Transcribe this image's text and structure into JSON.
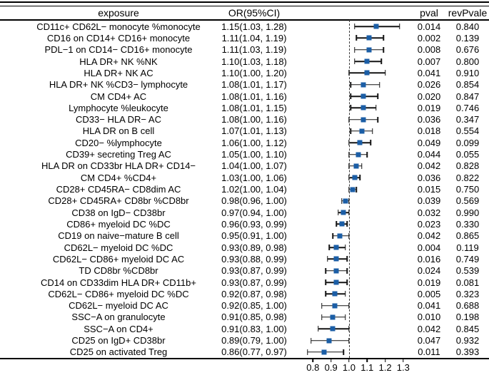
{
  "header": {
    "exposure": "exposure",
    "or_ci": "OR(95%CI)",
    "pval": "pval",
    "rev_pval": "revPvale"
  },
  "colors": {
    "marker_blue": "#1b5ea6",
    "line_black": "#141414"
  },
  "chart_data": {
    "type": "forest",
    "title": "",
    "reference_line": 1.0,
    "axis": {
      "tick_labels": [
        "0.8",
        "0.9",
        "1.0",
        "1.1",
        "1.2",
        "1.3"
      ],
      "tick_values": [
        0.8,
        0.9,
        1.0,
        1.1,
        1.2,
        1.3
      ],
      "range": [
        0.688,
        1.348
      ]
    },
    "rows": [
      {
        "exposure": "CD11c+ CD62L− monocyte %monocyte",
        "or_ci": "1.15(1.03, 1.28)",
        "or": 1.15,
        "lo": 1.03,
        "hi": 1.28,
        "pval": "0.014",
        "rev_pval": "0.840"
      },
      {
        "exposure": "CD16 on CD14+ CD16+ monocyte",
        "or_ci": "1.11(1.04, 1.19)",
        "or": 1.11,
        "lo": 1.04,
        "hi": 1.19,
        "pval": "0.002",
        "rev_pval": "0.139"
      },
      {
        "exposure": "PDL−1 on CD14− CD16+ monocyte",
        "or_ci": "1.11(1.03, 1.19)",
        "or": 1.11,
        "lo": 1.03,
        "hi": 1.19,
        "pval": "0.008",
        "rev_pval": "0.676"
      },
      {
        "exposure": "HLA DR+ NK %NK",
        "or_ci": "1.10(1.03, 1.18)",
        "or": 1.1,
        "lo": 1.03,
        "hi": 1.18,
        "pval": "0.007",
        "rev_pval": "0.800"
      },
      {
        "exposure": "HLA DR+ NK AC",
        "or_ci": "1.10(1.00, 1.20)",
        "or": 1.1,
        "lo": 1.0,
        "hi": 1.2,
        "pval": "0.041",
        "rev_pval": "0.910"
      },
      {
        "exposure": "HLA DR+ NK  %CD3− lymphocyte",
        "or_ci": "1.08(1.01, 1.17)",
        "or": 1.08,
        "lo": 1.01,
        "hi": 1.17,
        "pval": "0.026",
        "rev_pval": "0.854"
      },
      {
        "exposure": "CM CD4+ AC",
        "or_ci": "1.08(1.01, 1.16)",
        "or": 1.08,
        "lo": 1.01,
        "hi": 1.16,
        "pval": "0.020",
        "rev_pval": "0.847"
      },
      {
        "exposure": "Lymphocyte %leukocyte",
        "or_ci": "1.08(1.01, 1.15)",
        "or": 1.08,
        "lo": 1.01,
        "hi": 1.15,
        "pval": "0.019",
        "rev_pval": "0.746"
      },
      {
        "exposure": "CD33− HLA DR− AC",
        "or_ci": "1.08(1.00, 1.16)",
        "or": 1.08,
        "lo": 1.0,
        "hi": 1.16,
        "pval": "0.036",
        "rev_pval": "0.347"
      },
      {
        "exposure": "HLA DR on B cell",
        "or_ci": "1.07(1.01, 1.13)",
        "or": 1.07,
        "lo": 1.01,
        "hi": 1.13,
        "pval": "0.018",
        "rev_pval": "0.554"
      },
      {
        "exposure": "CD20− %lymphocyte",
        "or_ci": "1.06(1.00, 1.12)",
        "or": 1.06,
        "lo": 1.0,
        "hi": 1.12,
        "pval": "0.049",
        "rev_pval": "0.099"
      },
      {
        "exposure": "CD39+ secreting Treg  AC",
        "or_ci": "1.05(1.00, 1.10)",
        "or": 1.05,
        "lo": 1.0,
        "hi": 1.1,
        "pval": "0.044",
        "rev_pval": "0.055"
      },
      {
        "exposure": "HLA DR on CD33br HLA DR+ CD14−",
        "or_ci": "1.04(1.00, 1.07)",
        "or": 1.04,
        "lo": 1.0,
        "hi": 1.07,
        "pval": "0.042",
        "rev_pval": "0.828"
      },
      {
        "exposure": "CM CD4+ %CD4+",
        "or_ci": "1.03(1.00, 1.06)",
        "or": 1.03,
        "lo": 1.0,
        "hi": 1.06,
        "pval": "0.036",
        "rev_pval": "0.822"
      },
      {
        "exposure": "CD28+ CD45RA− CD8dim AC",
        "or_ci": "1.02(1.00, 1.04)",
        "or": 1.02,
        "lo": 1.0,
        "hi": 1.04,
        "pval": "0.015",
        "rev_pval": "0.750"
      },
      {
        "exposure": "CD28+ CD45RA+ CD8br %CD8br",
        "or_ci": "0.98(0.96, 1.00)",
        "or": 0.98,
        "lo": 0.96,
        "hi": 1.0,
        "pval": "0.039",
        "rev_pval": "0.569"
      },
      {
        "exposure": "CD38 on IgD− CD38br",
        "or_ci": "0.97(0.94, 1.00)",
        "or": 0.97,
        "lo": 0.94,
        "hi": 1.0,
        "pval": "0.032",
        "rev_pval": "0.990"
      },
      {
        "exposure": "CD86+ myeloid DC %DC",
        "or_ci": "0.96(0.93, 0.99)",
        "or": 0.96,
        "lo": 0.93,
        "hi": 0.99,
        "pval": "0.023",
        "rev_pval": "0.330"
      },
      {
        "exposure": "CD19 on naive−mature B cell",
        "or_ci": "0.95(0.91, 1.00)",
        "or": 0.95,
        "lo": 0.91,
        "hi": 1.0,
        "pval": "0.042",
        "rev_pval": "0.865"
      },
      {
        "exposure": "CD62L− myeloid DC %DC",
        "or_ci": "0.93(0.89, 0.98)",
        "or": 0.93,
        "lo": 0.89,
        "hi": 0.98,
        "pval": "0.004",
        "rev_pval": "0.119"
      },
      {
        "exposure": "CD62L− CD86+ myeloid DC AC",
        "or_ci": "0.93(0.88, 0.99)",
        "or": 0.93,
        "lo": 0.88,
        "hi": 0.99,
        "pval": "0.016",
        "rev_pval": "0.749"
      },
      {
        "exposure": "TD  CD8br %CD8br",
        "or_ci": "0.93(0.87, 0.99)",
        "or": 0.93,
        "lo": 0.87,
        "hi": 0.99,
        "pval": "0.024",
        "rev_pval": "0.539"
      },
      {
        "exposure": "CD14  on CD33dim HLA DR+ CD11b+",
        "or_ci": "0.93(0.87, 0.99)",
        "or": 0.93,
        "lo": 0.87,
        "hi": 0.99,
        "pval": "0.019",
        "rev_pval": "0.081"
      },
      {
        "exposure": "CD62L− CD86+ myeloid DC %DC",
        "or_ci": "0.92(0.87, 0.98)",
        "or": 0.92,
        "lo": 0.87,
        "hi": 0.98,
        "pval": "0.005",
        "rev_pval": "0.323"
      },
      {
        "exposure": "CD62L− myeloid DC AC",
        "or_ci": "0.92(0.85, 1.00)",
        "or": 0.92,
        "lo": 0.85,
        "hi": 1.0,
        "pval": "0.041",
        "rev_pval": "0.688"
      },
      {
        "exposure": "SSC−A on granulocyte",
        "or_ci": "0.91(0.85, 0.98)",
        "or": 0.91,
        "lo": 0.85,
        "hi": 0.98,
        "pval": "0.010",
        "rev_pval": "0.198"
      },
      {
        "exposure": "SSC−A on CD4+",
        "or_ci": "0.91(0.83, 1.00)",
        "or": 0.91,
        "lo": 0.83,
        "hi": 1.0,
        "pval": "0.042",
        "rev_pval": "0.845"
      },
      {
        "exposure": "CD25 on IgD+ CD38br",
        "or_ci": "0.89(0.79, 1.00)",
        "or": 0.89,
        "lo": 0.79,
        "hi": 1.0,
        "pval": "0.047",
        "rev_pval": "0.932"
      },
      {
        "exposure": "CD25 on activated Treg",
        "or_ci": "0.86(0.77, 0.97)",
        "or": 0.86,
        "lo": 0.77,
        "hi": 0.97,
        "pval": "0.011",
        "rev_pval": "0.393"
      }
    ]
  }
}
